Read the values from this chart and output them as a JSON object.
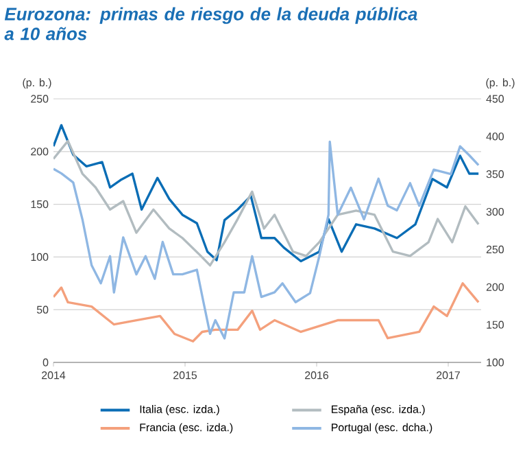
{
  "chart_data": {
    "type": "line",
    "title": "Eurozona: primas de riesgo de la deuda pública a 10 años",
    "ylabel": "(p. b.)",
    "y2label": "(p. b.)",
    "xlim": [
      2014,
      2017.25
    ],
    "xticks": [
      2014,
      2015,
      2016,
      2017
    ],
    "ylim": [
      0,
      250
    ],
    "yticks": [
      0,
      50,
      100,
      150,
      200,
      250
    ],
    "y2lim": [
      100,
      450
    ],
    "y2ticks": [
      100,
      150,
      200,
      250,
      300,
      350,
      400,
      450
    ],
    "grid": "y",
    "legend": "bottom",
    "marker": "none",
    "line_style": "solid",
    "series": [
      {
        "name": "Italia (esc. izda.)",
        "color": "#0a6db5",
        "x": [
          2014.0,
          2014.06,
          2014.15,
          2014.25,
          2014.37,
          2014.43,
          2014.51,
          2014.6,
          2014.67,
          2014.79,
          2014.88,
          2014.98,
          2015.09,
          2015.17,
          2015.24,
          2015.3,
          2015.4,
          2015.5,
          2015.58,
          2015.68,
          2015.75,
          2015.88,
          2016.02,
          2016.09,
          2016.19,
          2016.3,
          2016.44,
          2016.61,
          2016.75,
          2016.88,
          2016.99,
          2017.09,
          2017.16,
          2017.23
        ],
        "values": [
          205,
          225,
          197,
          186,
          190,
          166,
          173,
          179,
          145,
          175,
          155,
          140,
          132,
          105,
          97,
          135,
          145,
          158,
          118,
          118,
          109,
          96,
          105,
          136,
          105,
          131,
          127,
          118,
          131,
          174,
          166,
          196,
          179,
          179
        ]
      },
      {
        "name": "España (esc. izda.)",
        "color": "#b2bcc0",
        "x": [
          2014.0,
          2014.11,
          2014.22,
          2014.32,
          2014.43,
          2014.53,
          2014.63,
          2014.76,
          2014.88,
          2014.98,
          2015.12,
          2015.19,
          2015.3,
          2015.4,
          2015.51,
          2015.6,
          2015.68,
          2015.82,
          2015.92,
          2016.02,
          2016.16,
          2016.3,
          2016.44,
          2016.58,
          2016.71,
          2016.85,
          2016.92,
          2017.03,
          2017.13,
          2017.23
        ],
        "values": [
          193,
          210,
          179,
          166,
          145,
          153,
          123,
          145,
          127,
          118,
          101,
          92,
          114,
          136,
          162,
          127,
          140,
          105,
          101,
          114,
          140,
          144,
          140,
          105,
          101,
          114,
          136,
          114,
          148,
          131
        ]
      },
      {
        "name": "Francia (esc. izda.)",
        "color": "#f4a07c",
        "x": [
          2014.0,
          2014.06,
          2014.11,
          2014.29,
          2014.46,
          2014.63,
          2014.81,
          2014.92,
          2015.06,
          2015.13,
          2015.23,
          2015.4,
          2015.51,
          2015.57,
          2015.68,
          2015.88,
          2016.16,
          2016.47,
          2016.54,
          2016.78,
          2016.89,
          2016.99,
          2017.11,
          2017.23
        ],
        "values": [
          62,
          71,
          57,
          53,
          36,
          40,
          44,
          27,
          20,
          29,
          31,
          31,
          49,
          31,
          40,
          29,
          40,
          40,
          23,
          29,
          53,
          44,
          75,
          57
        ]
      },
      {
        "name": "Portugal (esc. dcha.)",
        "color": "#8fb7e3",
        "axis": "y2",
        "x": [
          2014.0,
          2014.06,
          2014.15,
          2014.22,
          2014.29,
          2014.36,
          2014.43,
          2014.46,
          2014.53,
          2014.63,
          2014.7,
          2014.77,
          2014.83,
          2014.91,
          2014.98,
          2015.09,
          2015.14,
          2015.19,
          2015.23,
          2015.3,
          2015.37,
          2015.45,
          2015.51,
          2015.58,
          2015.68,
          2015.74,
          2015.84,
          2015.95,
          2016.02,
          2016.09,
          2016.1,
          2016.16,
          2016.26,
          2016.36,
          2016.47,
          2016.54,
          2016.61,
          2016.71,
          2016.78,
          2016.89,
          2017.02,
          2017.09,
          2017.16,
          2017.23
        ],
        "values": [
          357,
          351,
          339,
          290,
          229,
          205,
          241,
          193,
          266,
          217,
          241,
          211,
          260,
          217,
          217,
          223,
          180,
          138,
          156,
          132,
          193,
          193,
          241,
          187,
          193,
          205,
          180,
          192,
          241,
          296,
          393,
          296,
          332,
          290,
          344,
          308,
          302,
          338,
          308,
          356,
          350,
          387,
          375,
          362
        ]
      }
    ]
  }
}
